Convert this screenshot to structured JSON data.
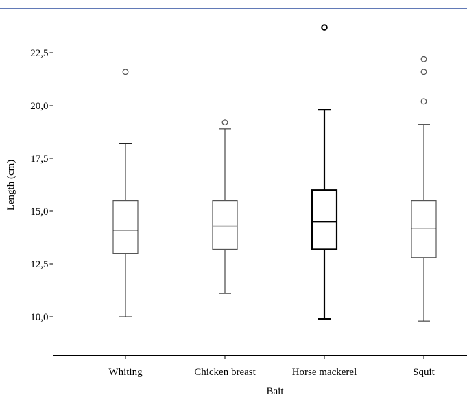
{
  "chart_data": {
    "type": "boxplot",
    "title": "",
    "xlabel": "Bait",
    "ylabel": "Length (cm)",
    "ylim": [
      8.0,
      24.8
    ],
    "yticks": [
      10.0,
      12.5,
      15.0,
      17.5,
      20.0,
      22.5
    ],
    "ytick_labels": [
      "10,0",
      "12,5",
      "15,0",
      "17,5",
      "20,0",
      "22,5"
    ],
    "grid": false,
    "categories": [
      "Whiting",
      "Chicken breast",
      "Horse mackerel",
      "Squit"
    ],
    "boxes": [
      {
        "category": "Whiting",
        "min": 10.0,
        "q1": 13.0,
        "median": 14.1,
        "q3": 15.5,
        "max": 18.2,
        "outliers": [
          21.6
        ],
        "bold": false
      },
      {
        "category": "Chicken breast",
        "min": 11.1,
        "q1": 13.2,
        "median": 14.3,
        "q3": 15.5,
        "max": 18.9,
        "outliers": [
          19.2
        ],
        "bold": false
      },
      {
        "category": "Horse mackerel",
        "min": 9.9,
        "q1": 13.2,
        "median": 14.5,
        "q3": 16.0,
        "max": 19.8,
        "outliers": [
          23.7
        ],
        "bold": true
      },
      {
        "category": "Squit",
        "min": 9.8,
        "q1": 12.8,
        "median": 14.2,
        "q3": 15.5,
        "max": 19.1,
        "outliers": [
          20.2,
          21.6,
          22.2
        ],
        "bold": false
      }
    ],
    "colors": {
      "frame_top": "#2f4f9f",
      "box_stroke": "#000000",
      "box_stroke_light": "#555555",
      "outlier_stroke": "#555555"
    }
  }
}
